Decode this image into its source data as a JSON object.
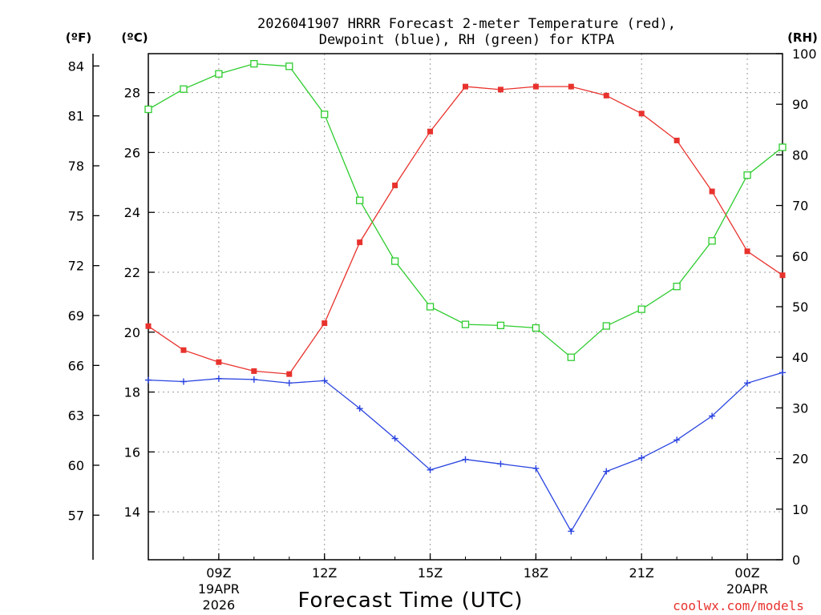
{
  "chart_data": {
    "type": "line",
    "title_lines": [
      "2026041907 HRRR Forecast 2-meter Temperature (red),",
      "Dewpoint (blue), RH (green) for KTPA"
    ],
    "xlabel": "Forecast Time (UTC)",
    "credit": "coolwx.com/models",
    "units": {
      "fahrenheit": "(ºF)",
      "celsius": "(ºC)",
      "rh": "(RH)"
    },
    "x_range_hours": [
      7,
      25
    ],
    "celsius_axis": {
      "range": [
        12.4,
        29.3
      ],
      "ticks": [
        "14",
        "16",
        "18",
        "20",
        "22",
        "24",
        "26",
        "28"
      ]
    },
    "fahrenheit_axis": {
      "range": [
        54.32,
        84.74
      ],
      "ticks": [
        "57",
        "60",
        "63",
        "66",
        "69",
        "72",
        "75",
        "78",
        "81",
        "84"
      ]
    },
    "rh_axis": {
      "range": [
        0,
        100
      ],
      "ticks": [
        "0",
        "10",
        "20",
        "30",
        "40",
        "50",
        "60",
        "70",
        "80",
        "90",
        "100"
      ]
    },
    "x_ticks": [
      {
        "hour": 9,
        "label": "09Z",
        "sub1": "19APR",
        "sub2": "2026"
      },
      {
        "hour": 12,
        "label": "12Z",
        "sub1": "",
        "sub2": ""
      },
      {
        "hour": 15,
        "label": "15Z",
        "sub1": "",
        "sub2": ""
      },
      {
        "hour": 18,
        "label": "18Z",
        "sub1": "",
        "sub2": ""
      },
      {
        "hour": 21,
        "label": "21Z",
        "sub1": "",
        "sub2": ""
      },
      {
        "hour": 24,
        "label": "00Z",
        "sub1": "20APR",
        "sub2": ""
      }
    ],
    "hours": [
      7,
      8,
      9,
      10,
      11,
      12,
      13,
      14,
      15,
      16,
      17,
      18,
      19,
      20,
      21,
      22,
      23,
      24,
      25
    ],
    "series": [
      {
        "name": "2-meter Temperature",
        "unit": "C",
        "color": "#e8322d",
        "marker": "filled-square",
        "values": [
          20.2,
          19.4,
          19.0,
          18.7,
          18.6,
          20.3,
          23.0,
          24.9,
          26.7,
          28.2,
          28.1,
          28.2,
          28.2,
          27.9,
          27.3,
          26.4,
          24.7,
          22.7,
          21.9
        ]
      },
      {
        "name": "Dewpoint",
        "unit": "C",
        "color": "#2a44e0",
        "marker": "plus",
        "values": [
          18.4,
          18.35,
          18.45,
          18.42,
          18.3,
          18.38,
          17.45,
          16.45,
          15.4,
          15.75,
          15.6,
          15.45,
          13.35,
          15.35,
          15.8,
          16.4,
          17.2,
          18.3,
          18.65
        ]
      },
      {
        "name": "RH",
        "unit": "%",
        "color": "#2ecc2e",
        "marker": "open-square",
        "values": [
          89,
          93,
          96,
          98,
          97.5,
          88,
          71,
          59,
          50,
          46.5,
          46.3,
          45.8,
          40,
          46.2,
          49.5,
          54,
          63,
          76,
          81.5
        ]
      }
    ]
  }
}
